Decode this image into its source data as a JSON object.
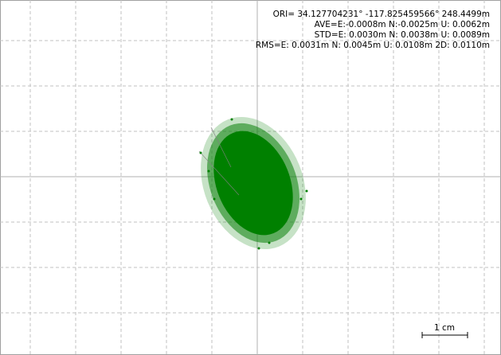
{
  "header": {
    "lines": [
      "ORI= 34.127704231° -117.825459566° 248.4499m",
      "AVE=E:-0.0008m N:-0.0025m U: 0.0062m",
      "STD=E: 0.0030m N: 0.0038m U: 0.0089m",
      "RMS=E: 0.0031m N: 0.0045m U: 0.0108m 2D: 0.0110m"
    ]
  },
  "scale": {
    "label": "1 cm"
  }
}
